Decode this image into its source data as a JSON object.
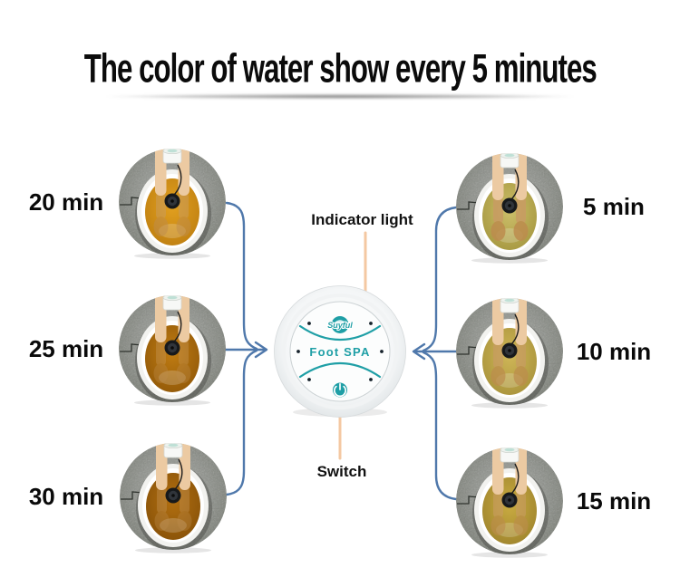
{
  "title": "The color of water show every 5 minutes",
  "annotations": {
    "indicator_light": "Indicator light",
    "switch": "Switch"
  },
  "device": {
    "brand": "Suyful",
    "label": "Foot SPA"
  },
  "stages": [
    {
      "label": "5 min",
      "position": "right-top",
      "water_center": "#cdbf6a",
      "water_edge": "#a3953d",
      "feet_opacity": 0.85
    },
    {
      "label": "10 min",
      "position": "right-middle",
      "water_center": "#cfb657",
      "water_edge": "#a6913a",
      "feet_opacity": 0.7
    },
    {
      "label": "15 min",
      "position": "right-bottom",
      "water_center": "#c9ab41",
      "water_edge": "#9c822c",
      "feet_opacity": 0.6
    },
    {
      "label": "20 min",
      "position": "left-top",
      "water_center": "#e2a01f",
      "water_edge": "#bc7d10",
      "feet_opacity": 0.5
    },
    {
      "label": "25 min",
      "position": "left-middle",
      "water_center": "#c07c12",
      "water_edge": "#8f5708",
      "feet_opacity": 0.35
    },
    {
      "label": "30 min",
      "position": "left-bottom",
      "water_center": "#b26f10",
      "water_edge": "#855008",
      "feet_opacity": 0.35
    }
  ],
  "colors": {
    "accent_teal": "#1f9fa6",
    "arrow_blue": "#4f78ab",
    "annotation_line": "#f4c8a2",
    "carpet_center": "#a3a6a0",
    "carpet_mid": "#8d908a",
    "carpet_edge": "#74786f",
    "basin_white": "#ffffff",
    "skin": "#eccaa2",
    "title_ink": "#0b0b0b"
  }
}
